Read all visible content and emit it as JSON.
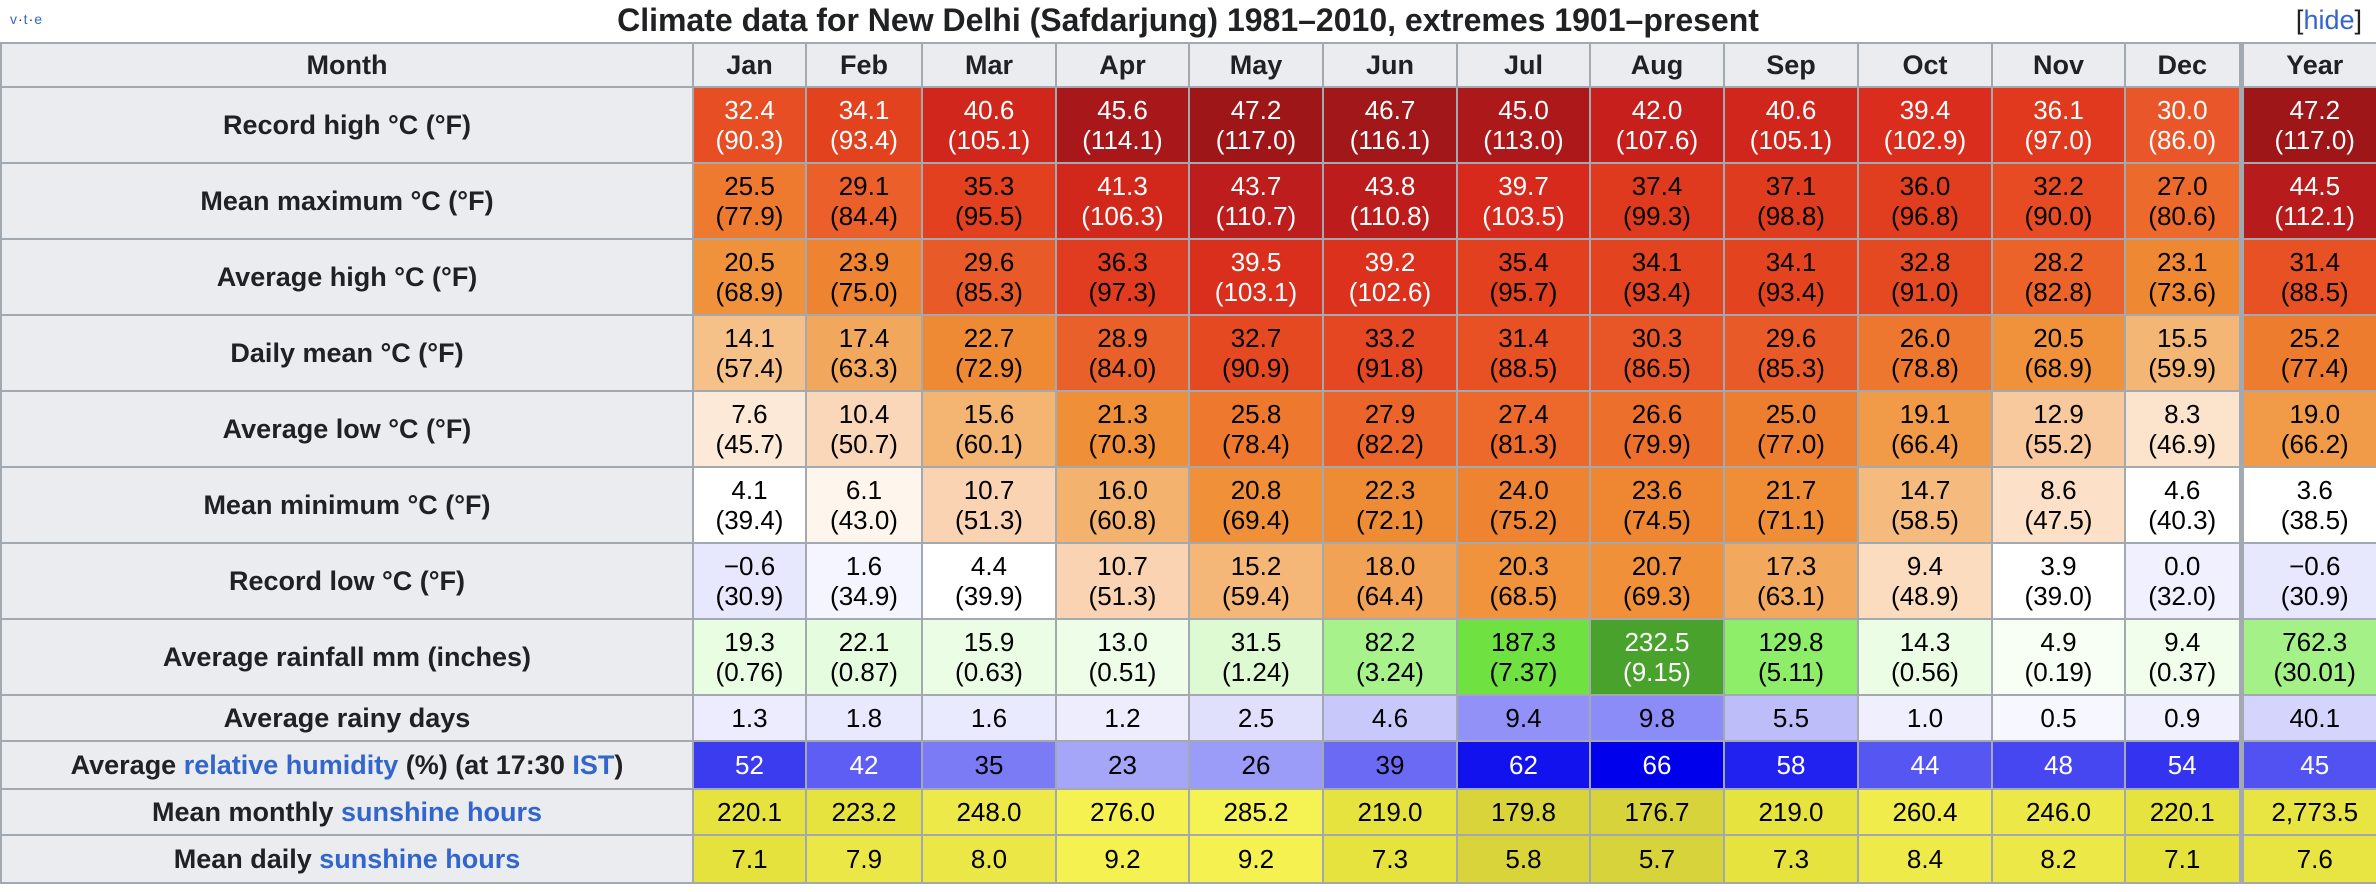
{
  "vte": {
    "v": "v",
    "t": "t",
    "e": "e",
    "sep": "·"
  },
  "caption": "Climate data for New Delhi (Safdarjung) 1981–2010, extremes 1901–present",
  "hide": {
    "open": "[",
    "label": "hide",
    "close": "]"
  },
  "header": {
    "label": "Month",
    "months": [
      "Jan",
      "Feb",
      "Mar",
      "Apr",
      "May",
      "Jun",
      "Jul",
      "Aug",
      "Sep",
      "Oct",
      "Nov",
      "Dec"
    ],
    "year": "Year"
  },
  "rows": [
    {
      "label": "Record high °C (°F)",
      "values": [
        {
          "c": "32.4",
          "f": "(90.3)",
          "bg": "#e74e24",
          "fg": "#ffffff"
        },
        {
          "c": "34.1",
          "f": "(93.4)",
          "bg": "#e3421f",
          "fg": "#ffffff"
        },
        {
          "c": "40.6",
          "f": "(105.1)",
          "bg": "#d1261b",
          "fg": "#ffffff"
        },
        {
          "c": "45.6",
          "f": "(114.1)",
          "bg": "#a8181a",
          "fg": "#ffffff"
        },
        {
          "c": "47.2",
          "f": "(117.0)",
          "bg": "#9e1618",
          "fg": "#ffffff"
        },
        {
          "c": "46.7",
          "f": "(116.1)",
          "bg": "#a21719",
          "fg": "#ffffff"
        },
        {
          "c": "45.0",
          "f": "(113.0)",
          "bg": "#ad191b",
          "fg": "#ffffff"
        },
        {
          "c": "42.0",
          "f": "(107.6)",
          "bg": "#c7201c",
          "fg": "#ffffff"
        },
        {
          "c": "40.6",
          "f": "(105.1)",
          "bg": "#d1261b",
          "fg": "#ffffff"
        },
        {
          "c": "39.4",
          "f": "(102.9)",
          "bg": "#da2d1d",
          "fg": "#ffffff"
        },
        {
          "c": "36.1",
          "f": "(97.0)",
          "bg": "#e0391e",
          "fg": "#ffffff"
        },
        {
          "c": "30.0",
          "f": "(86.0)",
          "bg": "#e8562a",
          "fg": "#ffffff"
        }
      ],
      "year": {
        "c": "47.2",
        "f": "(117.0)",
        "bg": "#9e1618",
        "fg": "#ffffff"
      }
    },
    {
      "label": "Mean maximum °C (°F)",
      "values": [
        {
          "c": "25.5",
          "f": "(77.9)",
          "bg": "#ed7a2e",
          "fg": "#000000"
        },
        {
          "c": "29.1",
          "f": "(84.4)",
          "bg": "#ea5f2a",
          "fg": "#000000"
        },
        {
          "c": "35.3",
          "f": "(95.5)",
          "bg": "#e2401f",
          "fg": "#000000"
        },
        {
          "c": "41.3",
          "f": "(106.3)",
          "bg": "#d2281c",
          "fg": "#ffffff"
        },
        {
          "c": "43.7",
          "f": "(110.7)",
          "bg": "#bd1d1c",
          "fg": "#ffffff"
        },
        {
          "c": "43.8",
          "f": "(110.8)",
          "bg": "#bc1d1c",
          "fg": "#ffffff"
        },
        {
          "c": "39.7",
          "f": "(103.5)",
          "bg": "#d8291d",
          "fg": "#ffffff"
        },
        {
          "c": "37.4",
          "f": "(99.3)",
          "bg": "#df3a1e",
          "fg": "#000000"
        },
        {
          "c": "37.1",
          "f": "(98.8)",
          "bg": "#df3b1e",
          "fg": "#000000"
        },
        {
          "c": "36.0",
          "f": "(96.8)",
          "bg": "#e13e1f",
          "fg": "#000000"
        },
        {
          "c": "32.2",
          "f": "(90.0)",
          "bg": "#e64b24",
          "fg": "#000000"
        },
        {
          "c": "27.0",
          "f": "(80.6)",
          "bg": "#ec6b2c",
          "fg": "#000000"
        }
      ],
      "year": {
        "c": "44.5",
        "f": "(112.1)",
        "bg": "#b71b1b",
        "fg": "#ffffff"
      }
    },
    {
      "label": "Average high °C (°F)",
      "values": [
        {
          "c": "20.5",
          "f": "(68.9)",
          "bg": "#f0923b",
          "fg": "#000000"
        },
        {
          "c": "23.9",
          "f": "(75.0)",
          "bg": "#ee8431",
          "fg": "#000000"
        },
        {
          "c": "29.6",
          "f": "(85.3)",
          "bg": "#e95a29",
          "fg": "#000000"
        },
        {
          "c": "36.3",
          "f": "(97.3)",
          "bg": "#e13c1f",
          "fg": "#000000"
        },
        {
          "c": "39.5",
          "f": "(103.1)",
          "bg": "#db2f1d",
          "fg": "#ffffff"
        },
        {
          "c": "39.2",
          "f": "(102.6)",
          "bg": "#db311d",
          "fg": "#ffffff"
        },
        {
          "c": "35.4",
          "f": "(95.7)",
          "bg": "#e2401f",
          "fg": "#000000"
        },
        {
          "c": "34.1",
          "f": "(93.4)",
          "bg": "#e3431f",
          "fg": "#000000"
        },
        {
          "c": "34.1",
          "f": "(93.4)",
          "bg": "#e3431f",
          "fg": "#000000"
        },
        {
          "c": "32.8",
          "f": "(91.0)",
          "bg": "#e54922",
          "fg": "#000000"
        },
        {
          "c": "28.2",
          "f": "(82.8)",
          "bg": "#eb6329",
          "fg": "#000000"
        },
        {
          "c": "23.1",
          "f": "(73.6)",
          "bg": "#ef8833",
          "fg": "#000000"
        }
      ],
      "year": {
        "c": "31.4",
        "f": "(88.5)",
        "bg": "#e75124",
        "fg": "#000000"
      }
    },
    {
      "label": "Daily mean °C (°F)",
      "values": [
        {
          "c": "14.1",
          "f": "(57.4)",
          "bg": "#f6c188",
          "fg": "#000000"
        },
        {
          "c": "17.4",
          "f": "(63.3)",
          "bg": "#f2a85c",
          "fg": "#000000"
        },
        {
          "c": "22.7",
          "f": "(72.9)",
          "bg": "#ee8a34",
          "fg": "#000000"
        },
        {
          "c": "28.9",
          "f": "(84.0)",
          "bg": "#ea602a",
          "fg": "#000000"
        },
        {
          "c": "32.7",
          "f": "(90.9)",
          "bg": "#e54922",
          "fg": "#000000"
        },
        {
          "c": "33.2",
          "f": "(91.8)",
          "bg": "#e44722",
          "fg": "#000000"
        },
        {
          "c": "31.4",
          "f": "(88.5)",
          "bg": "#e75124",
          "fg": "#000000"
        },
        {
          "c": "30.3",
          "f": "(86.5)",
          "bg": "#e85627",
          "fg": "#000000"
        },
        {
          "c": "29.6",
          "f": "(85.3)",
          "bg": "#e95a29",
          "fg": "#000000"
        },
        {
          "c": "26.0",
          "f": "(78.8)",
          "bg": "#ed772e",
          "fg": "#000000"
        },
        {
          "c": "20.5",
          "f": "(68.9)",
          "bg": "#f0923b",
          "fg": "#000000"
        },
        {
          "c": "15.5",
          "f": "(59.9)",
          "bg": "#f4b674",
          "fg": "#000000"
        }
      ],
      "year": {
        "c": "25.2",
        "f": "(77.4)",
        "bg": "#ed7c2f",
        "fg": "#000000"
      }
    },
    {
      "label": "Average low °C (°F)",
      "values": [
        {
          "c": "7.6",
          "f": "(45.7)",
          "bg": "#fde9d8",
          "fg": "#000000"
        },
        {
          "c": "10.4",
          "f": "(50.7)",
          "bg": "#fad7b8",
          "fg": "#000000"
        },
        {
          "c": "15.6",
          "f": "(60.1)",
          "bg": "#f4b573",
          "fg": "#000000"
        },
        {
          "c": "21.3",
          "f": "(70.3)",
          "bg": "#ef8f38",
          "fg": "#000000"
        },
        {
          "c": "25.8",
          "f": "(78.4)",
          "bg": "#ed782e",
          "fg": "#000000"
        },
        {
          "c": "27.9",
          "f": "(82.2)",
          "bg": "#eb652a",
          "fg": "#000000"
        },
        {
          "c": "27.4",
          "f": "(81.3)",
          "bg": "#ec692b",
          "fg": "#000000"
        },
        {
          "c": "26.6",
          "f": "(79.9)",
          "bg": "#ec702c",
          "fg": "#000000"
        },
        {
          "c": "25.0",
          "f": "(77.0)",
          "bg": "#ed7e30",
          "fg": "#000000"
        },
        {
          "c": "19.1",
          "f": "(66.4)",
          "bg": "#f19a47",
          "fg": "#000000"
        },
        {
          "c": "12.9",
          "f": "(55.2)",
          "bg": "#f8c99d",
          "fg": "#000000"
        },
        {
          "c": "8.3",
          "f": "(46.9)",
          "bg": "#fce3cc",
          "fg": "#000000"
        }
      ],
      "year": {
        "c": "19.0",
        "f": "(66.2)",
        "bg": "#f19b48",
        "fg": "#000000"
      }
    },
    {
      "label": "Mean minimum °C (°F)",
      "values": [
        {
          "c": "4.1",
          "f": "(39.4)",
          "bg": "#ffffff",
          "fg": "#000000"
        },
        {
          "c": "6.1",
          "f": "(43.0)",
          "bg": "#fef5ec",
          "fg": "#000000"
        },
        {
          "c": "10.7",
          "f": "(51.3)",
          "bg": "#fad3b2",
          "fg": "#000000"
        },
        {
          "c": "16.0",
          "f": "(60.8)",
          "bg": "#f3b26d",
          "fg": "#000000"
        },
        {
          "c": "20.8",
          "f": "(69.4)",
          "bg": "#f0913a",
          "fg": "#000000"
        },
        {
          "c": "22.3",
          "f": "(72.1)",
          "bg": "#ee8b35",
          "fg": "#000000"
        },
        {
          "c": "24.0",
          "f": "(75.2)",
          "bg": "#ee8431",
          "fg": "#000000"
        },
        {
          "c": "23.6",
          "f": "(74.5)",
          "bg": "#ee8632",
          "fg": "#000000"
        },
        {
          "c": "21.7",
          "f": "(71.1)",
          "bg": "#ef8e37",
          "fg": "#000000"
        },
        {
          "c": "14.7",
          "f": "(58.5)",
          "bg": "#f5bb7e",
          "fg": "#000000"
        },
        {
          "c": "8.6",
          "f": "(47.5)",
          "bg": "#fce1c8",
          "fg": "#000000"
        },
        {
          "c": "4.6",
          "f": "(40.3)",
          "bg": "#ffffff",
          "fg": "#000000"
        }
      ],
      "year": {
        "c": "3.6",
        "f": "(38.5)",
        "bg": "#ffffff",
        "fg": "#000000"
      }
    },
    {
      "label": "Record low °C (°F)",
      "values": [
        {
          "c": "−0.6",
          "f": "(30.9)",
          "bg": "#e7e7fd",
          "fg": "#000000"
        },
        {
          "c": "1.6",
          "f": "(34.9)",
          "bg": "#f5f5ff",
          "fg": "#000000"
        },
        {
          "c": "4.4",
          "f": "(39.9)",
          "bg": "#ffffff",
          "fg": "#000000"
        },
        {
          "c": "10.7",
          "f": "(51.3)",
          "bg": "#fad3b2",
          "fg": "#000000"
        },
        {
          "c": "15.2",
          "f": "(59.4)",
          "bg": "#f4b778",
          "fg": "#000000"
        },
        {
          "c": "18.0",
          "f": "(64.4)",
          "bg": "#f2a254",
          "fg": "#000000"
        },
        {
          "c": "20.3",
          "f": "(68.5)",
          "bg": "#f0933c",
          "fg": "#000000"
        },
        {
          "c": "20.7",
          "f": "(69.3)",
          "bg": "#f0913a",
          "fg": "#000000"
        },
        {
          "c": "17.3",
          "f": "(63.1)",
          "bg": "#f2a85d",
          "fg": "#000000"
        },
        {
          "c": "9.4",
          "f": "(48.9)",
          "bg": "#fbdcbf",
          "fg": "#000000"
        },
        {
          "c": "3.9",
          "f": "(39.0)",
          "bg": "#ffffff",
          "fg": "#000000"
        },
        {
          "c": "0.0",
          "f": "(32.0)",
          "bg": "#f0f0fe",
          "fg": "#000000"
        }
      ],
      "year": {
        "c": "−0.6",
        "f": "(30.9)",
        "bg": "#e7e7fd",
        "fg": "#000000"
      }
    },
    {
      "label": "Average rainfall mm (inches)",
      "values": [
        {
          "c": "19.3",
          "f": "(0.76)",
          "bg": "#e8fde1",
          "fg": "#000000"
        },
        {
          "c": "22.1",
          "f": "(0.87)",
          "bg": "#e6fcdf",
          "fg": "#000000"
        },
        {
          "c": "15.9",
          "f": "(0.63)",
          "bg": "#ebfde5",
          "fg": "#000000"
        },
        {
          "c": "13.0",
          "f": "(0.51)",
          "bg": "#edfde8",
          "fg": "#000000"
        },
        {
          "c": "31.5",
          "f": "(1.24)",
          "bg": "#ddfad2",
          "fg": "#000000"
        },
        {
          "c": "82.2",
          "f": "(3.24)",
          "bg": "#a8f28c",
          "fg": "#000000"
        },
        {
          "c": "187.3",
          "f": "(7.37)",
          "bg": "#6fe242",
          "fg": "#000000"
        },
        {
          "c": "232.5",
          "f": "(9.15)",
          "bg": "#49a22c",
          "fg": "#ffffff"
        },
        {
          "c": "129.8",
          "f": "(5.11)",
          "bg": "#8eee6a",
          "fg": "#000000"
        },
        {
          "c": "14.3",
          "f": "(0.56)",
          "bg": "#ecfde6",
          "fg": "#000000"
        },
        {
          "c": "4.9",
          "f": "(0.19)",
          "bg": "#f8fff5",
          "fg": "#000000"
        },
        {
          "c": "9.4",
          "f": "(0.37)",
          "bg": "#f1feec",
          "fg": "#000000"
        }
      ],
      "year": {
        "c": "762.3",
        "f": "(30.01)",
        "bg": "#a4f187",
        "fg": "#000000"
      }
    },
    {
      "label": "Average rainy days",
      "single": true,
      "values": [
        {
          "c": "1.3",
          "bg": "#ececfe",
          "fg": "#000000"
        },
        {
          "c": "1.8",
          "bg": "#e8e8fe",
          "fg": "#000000"
        },
        {
          "c": "1.6",
          "bg": "#eaeafe",
          "fg": "#000000"
        },
        {
          "c": "1.2",
          "bg": "#ededfe",
          "fg": "#000000"
        },
        {
          "c": "2.5",
          "bg": "#e0e0fd",
          "fg": "#000000"
        },
        {
          "c": "4.6",
          "bg": "#c8c8fb",
          "fg": "#000000"
        },
        {
          "c": "9.4",
          "bg": "#9191f8",
          "fg": "#000000"
        },
        {
          "c": "9.8",
          "bg": "#8c8cf8",
          "fg": "#000000"
        },
        {
          "c": "5.5",
          "bg": "#bdbdfa",
          "fg": "#000000"
        },
        {
          "c": "1.0",
          "bg": "#efeffe",
          "fg": "#000000"
        },
        {
          "c": "0.5",
          "bg": "#f7f7ff",
          "fg": "#000000"
        },
        {
          "c": "0.9",
          "bg": "#f0f0fe",
          "fg": "#000000"
        }
      ],
      "year": {
        "c": "40.1",
        "bg": "#d4d4fc",
        "fg": "#000000"
      }
    },
    {
      "label_parts": {
        "pre": "Average ",
        "link": "relative humidity",
        "mid": " (%) (at 17:30 ",
        "link2": "IST",
        "post": ")"
      },
      "single": true,
      "values": [
        {
          "c": "52",
          "bg": "#3b3bf0",
          "fg": "#ffffff"
        },
        {
          "c": "42",
          "bg": "#5e5ef4",
          "fg": "#ffffff"
        },
        {
          "c": "35",
          "bg": "#7b7bf6",
          "fg": "#000000"
        },
        {
          "c": "23",
          "bg": "#a6a6f9",
          "fg": "#000000"
        },
        {
          "c": "26",
          "bg": "#9b9bf8",
          "fg": "#000000"
        },
        {
          "c": "39",
          "bg": "#6a6af5",
          "fg": "#000000"
        },
        {
          "c": "62",
          "bg": "#1212ef",
          "fg": "#ffffff"
        },
        {
          "c": "66",
          "bg": "#0000ec",
          "fg": "#ffffff"
        },
        {
          "c": "58",
          "bg": "#2222f0",
          "fg": "#ffffff"
        },
        {
          "c": "44",
          "bg": "#5656f3",
          "fg": "#ffffff"
        },
        {
          "c": "48",
          "bg": "#4747f2",
          "fg": "#ffffff"
        },
        {
          "c": "54",
          "bg": "#3333f0",
          "fg": "#ffffff"
        }
      ],
      "year": {
        "c": "45",
        "bg": "#5252f3",
        "fg": "#ffffff"
      }
    },
    {
      "label_parts": {
        "pre": "Mean monthly ",
        "link": "sunshine hours",
        "mid": "",
        "link2": "",
        "post": ""
      },
      "single": true,
      "values": [
        {
          "c": "220.1",
          "bg": "#e6e33e",
          "fg": "#000000"
        },
        {
          "c": "223.2",
          "bg": "#e6e33e",
          "fg": "#000000"
        },
        {
          "c": "248.0",
          "bg": "#ede949",
          "fg": "#000000"
        },
        {
          "c": "276.0",
          "bg": "#f4f151",
          "fg": "#000000"
        },
        {
          "c": "285.2",
          "bg": "#f5f253",
          "fg": "#000000"
        },
        {
          "c": "219.0",
          "bg": "#e6e33e",
          "fg": "#000000"
        },
        {
          "c": "179.8",
          "bg": "#d8d43a",
          "fg": "#000000"
        },
        {
          "c": "176.7",
          "bg": "#d7d33a",
          "fg": "#000000"
        },
        {
          "c": "219.0",
          "bg": "#e6e33e",
          "fg": "#000000"
        },
        {
          "c": "260.4",
          "bg": "#f0ec4c",
          "fg": "#000000"
        },
        {
          "c": "246.0",
          "bg": "#ece848",
          "fg": "#000000"
        },
        {
          "c": "220.1",
          "bg": "#e6e33e",
          "fg": "#000000"
        }
      ],
      "year": {
        "c": "2,773.5",
        "bg": "#e8e542",
        "fg": "#000000"
      }
    },
    {
      "label_parts": {
        "pre": "Mean daily ",
        "link": "sunshine hours",
        "mid": "",
        "link2": "",
        "post": ""
      },
      "single": true,
      "values": [
        {
          "c": "7.1",
          "bg": "#e5e23e",
          "fg": "#000000"
        },
        {
          "c": "7.9",
          "bg": "#ebe746",
          "fg": "#000000"
        },
        {
          "c": "8.0",
          "bg": "#ebe746",
          "fg": "#000000"
        },
        {
          "c": "9.2",
          "bg": "#f4f151",
          "fg": "#000000"
        },
        {
          "c": "9.2",
          "bg": "#f4f151",
          "fg": "#000000"
        },
        {
          "c": "7.3",
          "bg": "#e6e33f",
          "fg": "#000000"
        },
        {
          "c": "5.8",
          "bg": "#d8d43a",
          "fg": "#000000"
        },
        {
          "c": "5.7",
          "bg": "#d7d33a",
          "fg": "#000000"
        },
        {
          "c": "7.3",
          "bg": "#e6e33f",
          "fg": "#000000"
        },
        {
          "c": "8.4",
          "bg": "#eeea4a",
          "fg": "#000000"
        },
        {
          "c": "8.2",
          "bg": "#ece848",
          "fg": "#000000"
        },
        {
          "c": "7.1",
          "bg": "#e5e23e",
          "fg": "#000000"
        }
      ],
      "year": {
        "c": "7.6",
        "bg": "#e8e542",
        "fg": "#000000"
      }
    }
  ]
}
